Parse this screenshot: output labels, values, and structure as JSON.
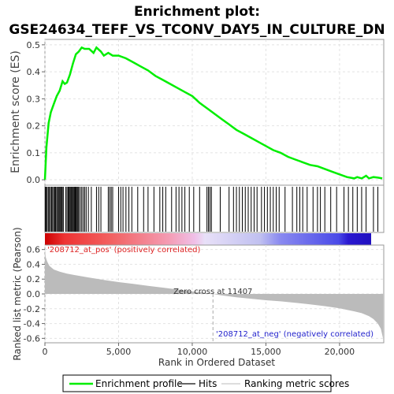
{
  "title_line1": "Enrichment plot:",
  "title_line2": "GSE24634_TEFF_VS_TCONV_DAY5_IN_CULTURE_DN",
  "colors": {
    "enrichment": "#00ee00",
    "hits": "#000000",
    "metric": "#bbbbbb",
    "pos_label": "#dd2222",
    "neg_label": "#2222cc",
    "grid": "#e2e2e2"
  },
  "chart_data": [
    {
      "type": "line",
      "ylabel": "Enrichment score (ES)",
      "xlim": [
        0,
        23000
      ],
      "ylim": [
        -0.02,
        0.52
      ],
      "y_ticks": [
        0.0,
        0.1,
        0.2,
        0.3,
        0.4,
        0.5
      ],
      "y_tick_labels": [
        "0.0",
        "0.1",
        "0.2",
        "0.3",
        "0.4",
        "0.5"
      ],
      "grid": true,
      "series": [
        {
          "name": "Enrichment profile",
          "x": [
            0,
            100,
            250,
            400,
            600,
            800,
            1000,
            1200,
            1350,
            1500,
            1700,
            1900,
            2100,
            2300,
            2500,
            2700,
            3000,
            3300,
            3500,
            3800,
            4000,
            4300,
            4600,
            5000,
            5500,
            6000,
            6500,
            7000,
            7500,
            8000,
            8500,
            9000,
            9500,
            10000,
            10500,
            11000,
            11500,
            12000,
            12500,
            13000,
            13500,
            14000,
            14500,
            15000,
            15500,
            16000,
            16500,
            17000,
            17500,
            18000,
            18500,
            19000,
            19500,
            20000,
            20500,
            21000,
            21200,
            21500,
            21800,
            22000,
            22300,
            22600,
            22900
          ],
          "y": [
            0.0,
            0.12,
            0.21,
            0.25,
            0.28,
            0.31,
            0.33,
            0.365,
            0.355,
            0.36,
            0.39,
            0.43,
            0.465,
            0.475,
            0.49,
            0.485,
            0.485,
            0.47,
            0.49,
            0.475,
            0.46,
            0.47,
            0.46,
            0.46,
            0.45,
            0.435,
            0.42,
            0.405,
            0.385,
            0.37,
            0.355,
            0.34,
            0.325,
            0.31,
            0.285,
            0.265,
            0.245,
            0.225,
            0.205,
            0.185,
            0.17,
            0.155,
            0.14,
            0.125,
            0.11,
            0.1,
            0.085,
            0.075,
            0.065,
            0.055,
            0.05,
            0.04,
            0.03,
            0.02,
            0.01,
            0.005,
            0.01,
            0.005,
            0.015,
            0.005,
            0.01,
            0.008,
            0.005
          ]
        }
      ]
    },
    {
      "type": "heatmap",
      "series": [
        {
          "name": "Hits",
          "x": [
            20,
            80,
            150,
            230,
            300,
            380,
            450,
            520,
            600,
            660,
            720,
            800,
            860,
            930,
            1000,
            1060,
            1120,
            1180,
            1250,
            1420,
            1500,
            1580,
            1640,
            1700,
            1760,
            1820,
            1880,
            1940,
            2000,
            2060,
            2120,
            2180,
            2240,
            2300,
            2400,
            2500,
            2600,
            2700,
            2800,
            2950,
            3150,
            3500,
            3650,
            3800,
            4300,
            4400,
            4500,
            4600,
            5000,
            5150,
            5300,
            5500,
            5700,
            5900,
            6300,
            6700,
            7000,
            7400,
            7800,
            8000,
            8200,
            8600,
            8900,
            9100,
            9300,
            9500,
            9800,
            10100,
            10500,
            11000,
            11100,
            11200,
            11300,
            11900,
            12500,
            12800,
            13000,
            13200,
            13400,
            13600,
            13800,
            14000,
            14200,
            14400,
            14700,
            14900,
            15100,
            15300,
            15500,
            15700,
            15900,
            16300,
            16800,
            17100,
            17300,
            17500,
            17800,
            18200,
            18500,
            18700,
            19000,
            19400,
            19800,
            20300,
            20600,
            20900,
            21200,
            21500,
            21800,
            22300,
            22600
          ]
        }
      ]
    },
    {
      "type": "area",
      "ylabel": "Ranked list metric (Pearson)",
      "xlabel": "Rank in Ordered Dataset",
      "xlim": [
        0,
        23000
      ],
      "ylim": [
        -0.66,
        0.66
      ],
      "y_ticks": [
        -0.6,
        -0.4,
        -0.2,
        0.0,
        0.2,
        0.4,
        0.6
      ],
      "y_tick_labels": [
        "-0.6",
        "-0.4",
        "-0.2",
        "0.0",
        "0.2",
        "0.4",
        "0.6"
      ],
      "x_ticks": [
        0,
        5000,
        10000,
        15000,
        20000
      ],
      "x_tick_labels": [
        "0",
        "5,000",
        "10,000",
        "15,000",
        "20,000"
      ],
      "grid": true,
      "series": [
        {
          "name": "Ranking metric scores",
          "x": [
            0,
            50,
            150,
            300,
            600,
            1000,
            1500,
            2000,
            3000,
            4000,
            5000,
            6000,
            7000,
            8000,
            9000,
            10000,
            11000,
            11407,
            12000,
            13000,
            14000,
            15000,
            16000,
            17000,
            18000,
            19000,
            20000,
            21000,
            21500,
            22000,
            22300,
            22600,
            22800,
            22950
          ],
          "y": [
            0.6,
            0.5,
            0.44,
            0.38,
            0.33,
            0.3,
            0.275,
            0.255,
            0.22,
            0.19,
            0.16,
            0.135,
            0.11,
            0.085,
            0.06,
            0.035,
            0.012,
            0.0,
            -0.02,
            -0.045,
            -0.065,
            -0.085,
            -0.1,
            -0.12,
            -0.14,
            -0.165,
            -0.195,
            -0.235,
            -0.26,
            -0.3,
            -0.34,
            -0.4,
            -0.47,
            -0.6
          ]
        }
      ],
      "annotations": {
        "zero_cross": "Zero cross at 11407",
        "pos_label": "'208712_at_pos' (positively correlated)",
        "neg_label": "'208712_at_neg' (negatively correlated)"
      }
    }
  ],
  "legend": {
    "items": [
      "Enrichment profile",
      "Hits",
      "Ranking metric scores"
    ]
  }
}
